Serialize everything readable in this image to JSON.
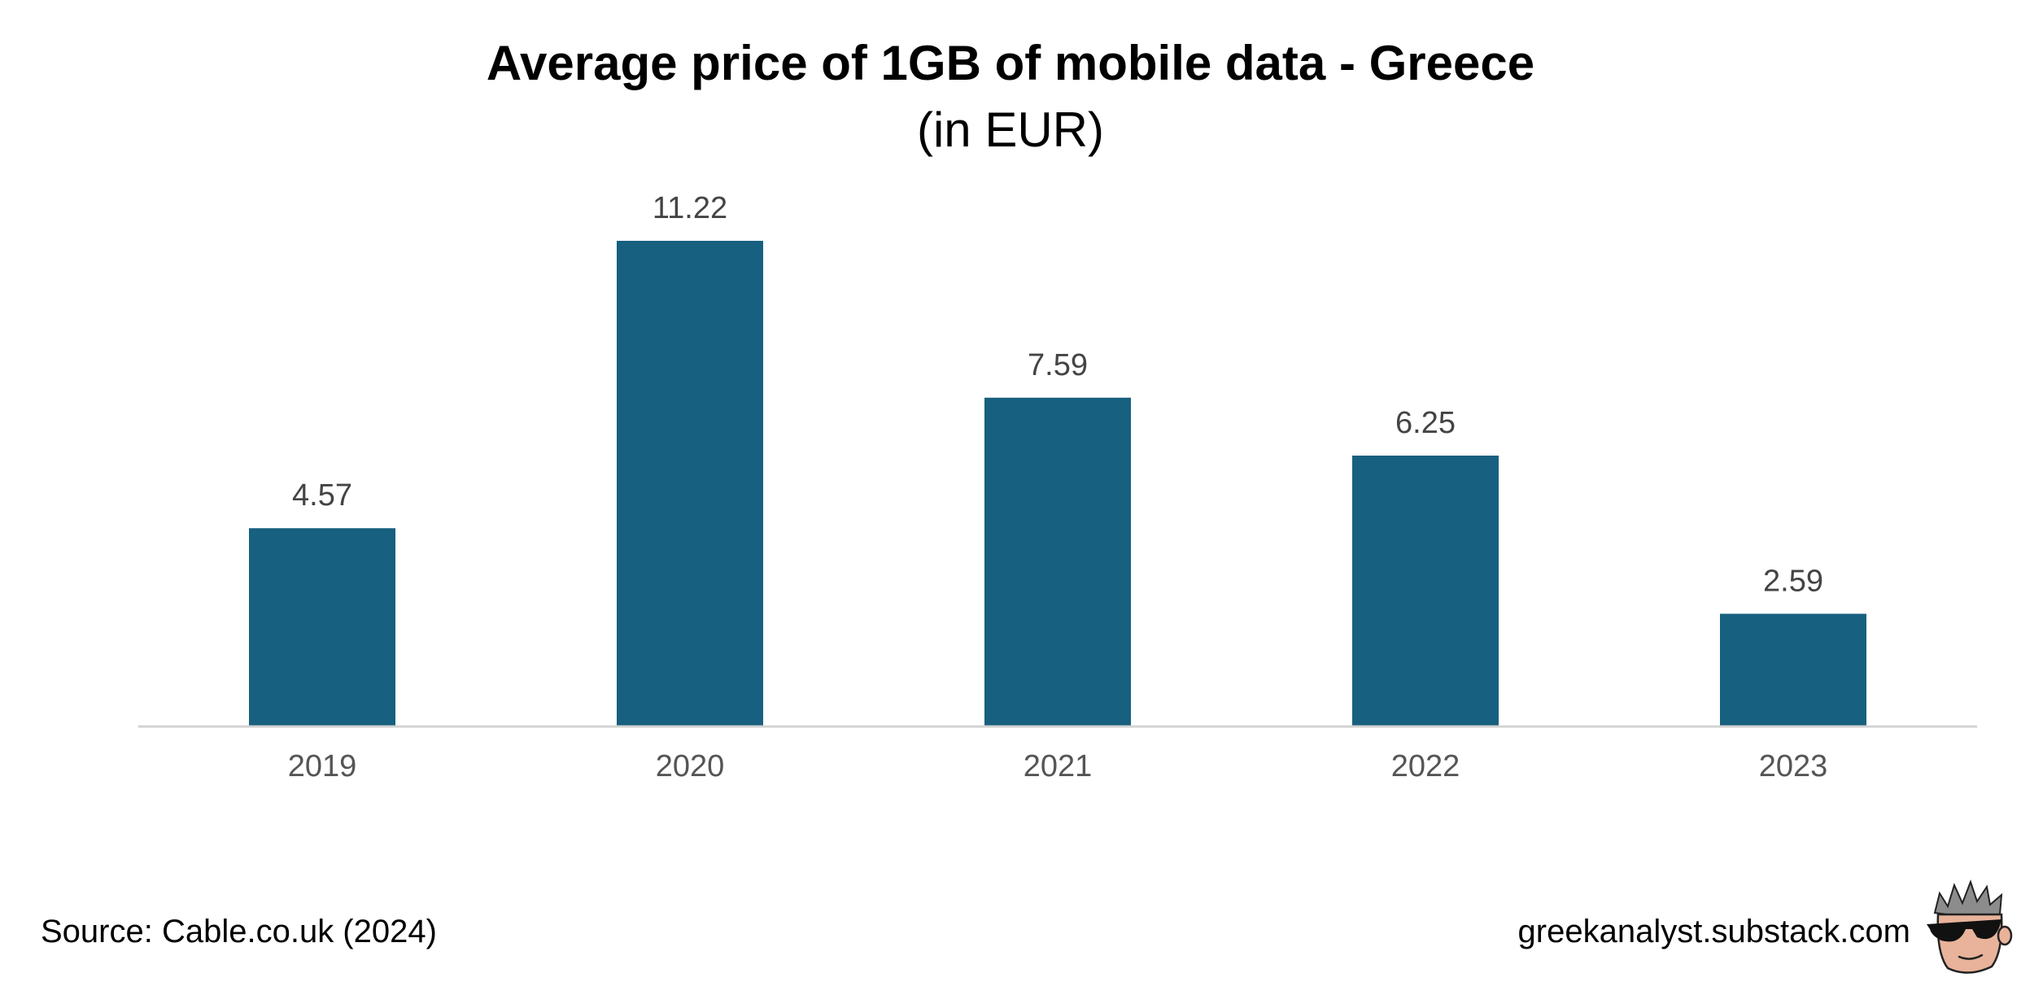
{
  "header": {
    "title": "Average price of 1GB of mobile data - Greece",
    "subtitle": "(in EUR)"
  },
  "chart_data": {
    "type": "bar",
    "title": "Average price of 1GB of mobile data - Greece",
    "subtitle": "(in EUR)",
    "categories": [
      "2019",
      "2020",
      "2021",
      "2022",
      "2023"
    ],
    "values": [
      4.57,
      11.22,
      7.59,
      6.25,
      2.59
    ],
    "data_labels": [
      "4.57",
      "11.22",
      "7.59",
      "6.25",
      "2.59"
    ],
    "xlabel": "",
    "ylabel": "",
    "ylim": [
      0,
      11.22
    ],
    "y_axis_visible": false,
    "grid": false,
    "legend": "none",
    "bar_color": "#17607f",
    "axis_color": "#d3d3d3",
    "label_color": "#444444"
  },
  "footer": {
    "source": "Source: Cable.co.uk (2024)",
    "site": "greekanalyst.substack.com"
  },
  "icons": {
    "avatar": "sunglasses-face-icon"
  }
}
